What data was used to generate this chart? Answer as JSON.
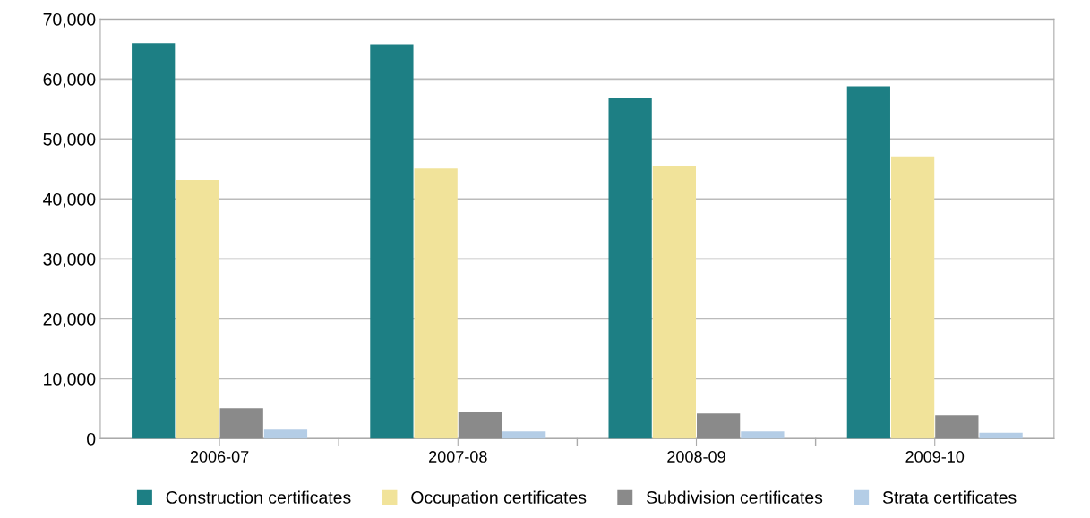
{
  "chart_data": {
    "type": "bar",
    "categories": [
      "2006-07",
      "2007-08",
      "2008-09",
      "2009-10"
    ],
    "series": [
      {
        "name": "Construction certificates",
        "color": "#1d7f84",
        "values": [
          66000,
          65800,
          56900,
          58800
        ]
      },
      {
        "name": "Occupation certificates",
        "color": "#f1e39a",
        "values": [
          43200,
          45100,
          45600,
          47100
        ]
      },
      {
        "name": "Subdivision certificates",
        "color": "#8a8a8a",
        "values": [
          5100,
          4500,
          4200,
          3900
        ]
      },
      {
        "name": "Strata certificates",
        "color": "#b4cde6",
        "values": [
          1500,
          1200,
          1200,
          1000
        ]
      }
    ],
    "ylim": [
      0,
      70000
    ],
    "yticks": [
      {
        "value": 0,
        "label": "0"
      },
      {
        "value": 10000,
        "label": "10,000"
      },
      {
        "value": 20000,
        "label": "20,000"
      },
      {
        "value": 30000,
        "label": "30,000"
      },
      {
        "value": 40000,
        "label": "40,000"
      },
      {
        "value": 50000,
        "label": "50,000"
      },
      {
        "value": 60000,
        "label": "60,000"
      },
      {
        "value": 70000,
        "label": "70,000"
      }
    ],
    "grid": "y",
    "legend": "bottom"
  }
}
